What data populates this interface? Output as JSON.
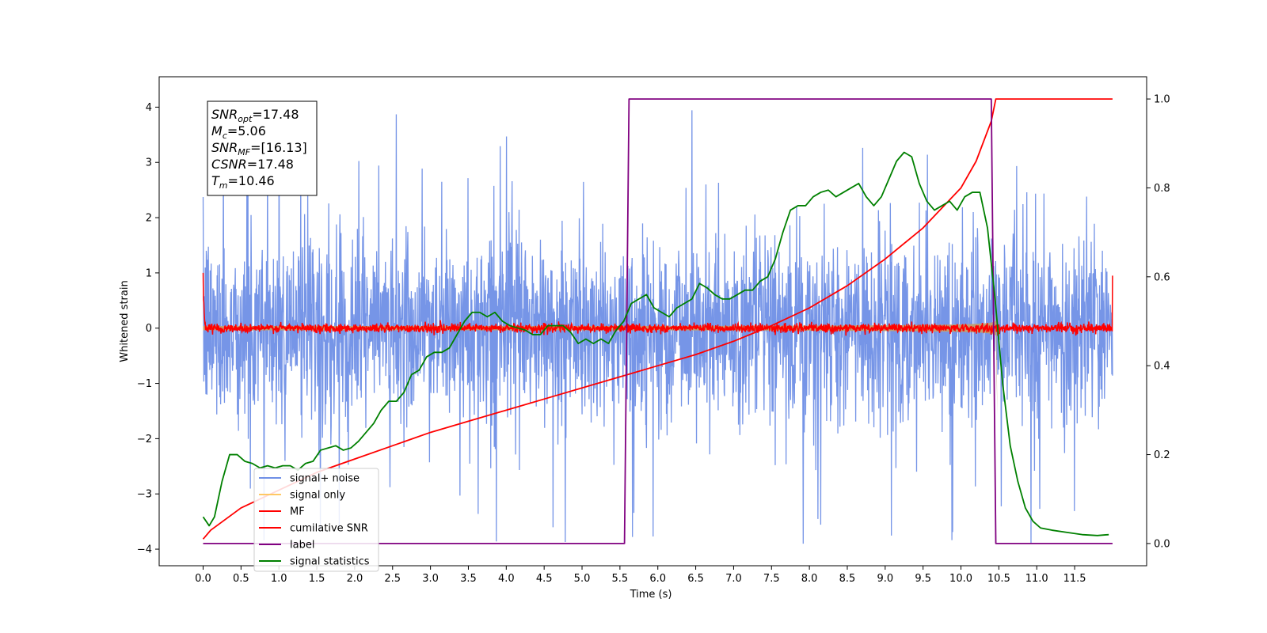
{
  "chart_data": {
    "type": "line",
    "title": "",
    "xlabel": "Time (s)",
    "ylabel": "Whitened strain",
    "xlim": [
      -0.58,
      12.45
    ],
    "ylim": [
      -4.3,
      4.55
    ],
    "y2lim": [
      -0.05,
      1.05
    ],
    "xticks": [
      "0.0",
      "0.5",
      "1.0",
      "1.5",
      "2.0",
      "2.5",
      "3.0",
      "3.5",
      "4.0",
      "4.5",
      "5.0",
      "5.5",
      "6.0",
      "6.5",
      "7.0",
      "7.5",
      "8.0",
      "8.5",
      "9.0",
      "9.5",
      "10.0",
      "10.5",
      "11.0",
      "11.5"
    ],
    "yticks": [
      "−4",
      "−3",
      "−2",
      "−1",
      "0",
      "1",
      "2",
      "3",
      "4"
    ],
    "y2ticks": [
      "0.0",
      "0.2",
      "0.4",
      "0.6",
      "0.8",
      "1.0"
    ],
    "grid": false,
    "legend_position": "lower-left",
    "series": [
      {
        "name": "signal+ noise",
        "color": "#6f8fe6",
        "axis": "left",
        "kind": "noise",
        "x_range": [
          0.0,
          12.0
        ],
        "amplitude_std": 0.95,
        "peak_max": 4.2,
        "peak_min": -3.9
      },
      {
        "name": "signal only",
        "color": "#ffc864",
        "axis": "left",
        "kind": "chirp",
        "x_range": [
          0.0,
          10.46
        ],
        "envelope_start": 0.04,
        "envelope_end": 0.85
      },
      {
        "name": "MF",
        "color": "#ff0000",
        "axis": "left",
        "kind": "noise",
        "x_range": [
          0.0,
          12.0
        ],
        "amplitude_std": 0.04,
        "start_value": 1.0,
        "end_value": 0.95
      },
      {
        "name": "cumilative SNR",
        "color": "#ff0000",
        "axis": "right",
        "x": [
          0.0,
          0.1,
          0.5,
          1.0,
          1.5,
          2.0,
          2.5,
          3.0,
          3.5,
          4.0,
          4.5,
          5.0,
          5.5,
          6.0,
          6.5,
          7.0,
          7.5,
          8.0,
          8.5,
          9.0,
          9.5,
          10.0,
          10.2,
          10.4,
          10.46,
          10.5,
          12.0
        ],
        "values": [
          0.01,
          0.03,
          0.08,
          0.12,
          0.16,
          0.19,
          0.22,
          0.25,
          0.275,
          0.3,
          0.325,
          0.35,
          0.375,
          0.4,
          0.425,
          0.455,
          0.49,
          0.53,
          0.58,
          0.64,
          0.71,
          0.8,
          0.86,
          0.95,
          1.0,
          1.0,
          1.0
        ]
      },
      {
        "name": "label",
        "color": "#800080",
        "axis": "right",
        "x": [
          0.0,
          5.56,
          5.62,
          10.4,
          10.46,
          12.0
        ],
        "values": [
          0.0,
          0.0,
          1.0,
          1.0,
          0.0,
          0.0
        ]
      },
      {
        "name": "signal statistics",
        "color": "#008000",
        "axis": "right",
        "x": [
          0.0,
          0.08,
          0.15,
          0.25,
          0.35,
          0.45,
          0.55,
          0.65,
          0.75,
          0.85,
          0.95,
          1.05,
          1.15,
          1.25,
          1.35,
          1.45,
          1.55,
          1.65,
          1.75,
          1.85,
          1.95,
          2.05,
          2.15,
          2.25,
          2.35,
          2.45,
          2.55,
          2.65,
          2.75,
          2.85,
          2.95,
          3.05,
          3.15,
          3.25,
          3.35,
          3.45,
          3.55,
          3.65,
          3.75,
          3.85,
          3.95,
          4.05,
          4.15,
          4.25,
          4.35,
          4.45,
          4.55,
          4.65,
          4.75,
          4.85,
          4.95,
          5.05,
          5.15,
          5.25,
          5.35,
          5.45,
          5.55,
          5.65,
          5.75,
          5.85,
          5.95,
          6.05,
          6.15,
          6.25,
          6.35,
          6.45,
          6.55,
          6.65,
          6.75,
          6.85,
          6.95,
          7.05,
          7.15,
          7.25,
          7.35,
          7.45,
          7.55,
          7.65,
          7.75,
          7.85,
          7.95,
          8.05,
          8.15,
          8.25,
          8.35,
          8.45,
          8.55,
          8.65,
          8.75,
          8.85,
          8.95,
          9.05,
          9.15,
          9.25,
          9.35,
          9.45,
          9.55,
          9.65,
          9.75,
          9.85,
          9.95,
          10.05,
          10.15,
          10.25,
          10.35,
          10.45,
          10.55,
          10.65,
          10.75,
          10.85,
          10.95,
          11.05,
          11.2,
          11.4,
          11.6,
          11.8,
          11.95
        ],
        "values": [
          0.06,
          0.04,
          0.06,
          0.14,
          0.2,
          0.2,
          0.185,
          0.18,
          0.17,
          0.175,
          0.17,
          0.175,
          0.175,
          0.165,
          0.18,
          0.185,
          0.21,
          0.215,
          0.22,
          0.21,
          0.215,
          0.23,
          0.25,
          0.27,
          0.3,
          0.32,
          0.32,
          0.34,
          0.38,
          0.39,
          0.42,
          0.43,
          0.43,
          0.44,
          0.47,
          0.5,
          0.52,
          0.52,
          0.51,
          0.52,
          0.5,
          0.49,
          0.485,
          0.48,
          0.47,
          0.47,
          0.49,
          0.49,
          0.49,
          0.475,
          0.45,
          0.46,
          0.45,
          0.46,
          0.45,
          0.48,
          0.5,
          0.54,
          0.55,
          0.56,
          0.53,
          0.52,
          0.51,
          0.53,
          0.54,
          0.55,
          0.585,
          0.575,
          0.56,
          0.55,
          0.55,
          0.56,
          0.57,
          0.57,
          0.59,
          0.6,
          0.64,
          0.7,
          0.75,
          0.76,
          0.76,
          0.78,
          0.79,
          0.795,
          0.78,
          0.79,
          0.8,
          0.81,
          0.78,
          0.76,
          0.78,
          0.82,
          0.86,
          0.88,
          0.87,
          0.81,
          0.77,
          0.75,
          0.76,
          0.77,
          0.75,
          0.78,
          0.79,
          0.79,
          0.71,
          0.55,
          0.36,
          0.22,
          0.14,
          0.08,
          0.05,
          0.035,
          0.03,
          0.025,
          0.02,
          0.018,
          0.02
        ]
      }
    ],
    "annotation": {
      "lines": [
        {
          "base": "SNR",
          "sub": "opt",
          "rest": "=17.48"
        },
        {
          "base": "M",
          "sub": "c",
          "rest": "=5.06"
        },
        {
          "base": "SNR",
          "sub": "MF",
          "rest": "=[16.13]"
        },
        {
          "base": "CSNR",
          "sub": "",
          "rest": "=17.48"
        },
        {
          "base": "T",
          "sub": "m",
          "rest": "=10.46"
        }
      ]
    }
  }
}
